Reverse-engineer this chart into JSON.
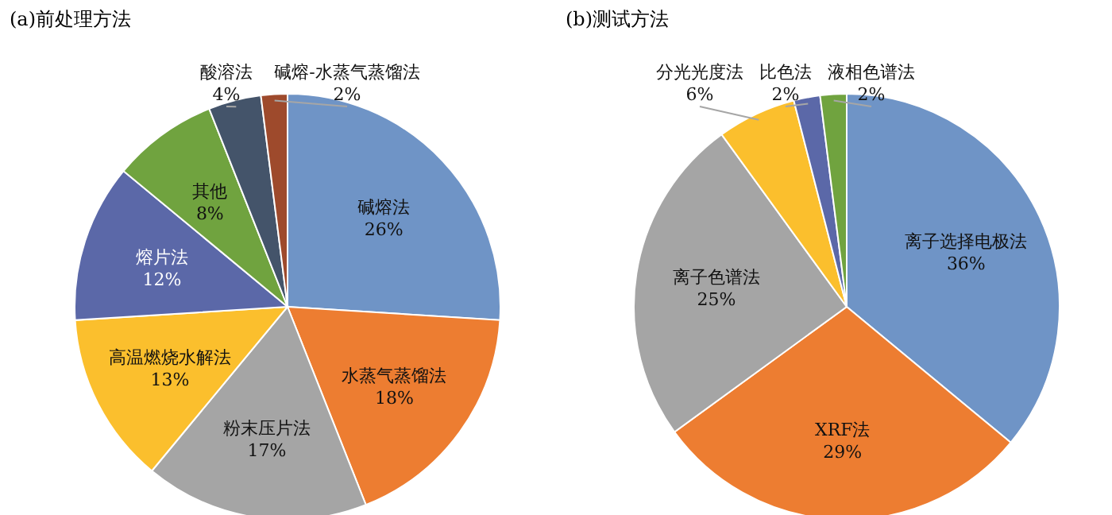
{
  "chart_data": [
    {
      "type": "pie",
      "title": "(a)前处理方法",
      "categories": [
        "碱熔法",
        "水蒸气蒸馏法",
        "粉末压片法",
        "高温燃烧水解法",
        "熔片法",
        "其他",
        "酸溶法",
        "碱熔-水蒸气蒸馏法"
      ],
      "values": [
        26,
        18,
        17,
        13,
        12,
        8,
        4,
        2
      ],
      "value_labels": [
        "26%",
        "18%",
        "17%",
        "13%",
        "12%",
        "8%",
        "4%",
        "2%"
      ],
      "colors": [
        "#6f94c6",
        "#ed7d31",
        "#a5a5a5",
        "#fbbf2d",
        "#5b68a8",
        "#70a33f",
        "#44546a",
        "#9e4a2c"
      ]
    },
    {
      "type": "pie",
      "title": "(b)测试方法",
      "categories": [
        "离子选择电极法",
        "XRF法",
        "离子色谱法",
        "分光光度法",
        "比色法",
        "液相色谱法"
      ],
      "values": [
        36,
        29,
        25,
        6,
        2,
        2
      ],
      "value_labels": [
        "36%",
        "29%",
        "25%",
        "6%",
        "2%",
        "2%"
      ],
      "colors": [
        "#6f94c6",
        "#ed7d31",
        "#a5a5a5",
        "#fbbf2d",
        "#5b68a8",
        "#70a33f"
      ]
    }
  ]
}
